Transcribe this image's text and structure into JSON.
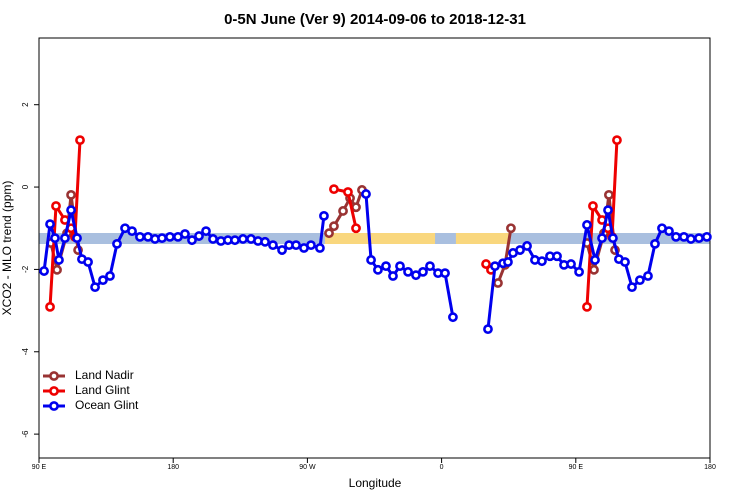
{
  "chart_data": {
    "type": "line",
    "title": "0-5N June (Ver 9)   2014-09-06 to 2018-12-31",
    "x_label": "Longitude",
    "y_label": "XCO2 - MLO trend (ppm)",
    "xlim": [
      90,
      540
    ],
    "ylim": [
      -6.58,
      3.62
    ],
    "xticks": [
      {
        "value": 90,
        "label": "90 E"
      },
      180,
      {
        "value": 270,
        "label": "90 W"
      },
      {
        "value": 360,
        "label": "0"
      },
      {
        "value": 450,
        "label": "90 E"
      },
      {
        "value": 540,
        "label": "180"
      }
    ],
    "yticks": [
      -6,
      -4,
      -2,
      0,
      2
    ],
    "legend": "lower left",
    "bands": [
      {
        "color": "#a9bfdf",
        "y": -1.25,
        "x": [
          90,
          540
        ]
      },
      {
        "color": "#f9d77e",
        "y": -1.25,
        "x": [
          281.8,
          355.6
        ]
      },
      {
        "color": "#f9d77e",
        "y": -1.25,
        "x": [
          369.6,
          405.8
        ]
      }
    ],
    "series": [
      {
        "name": "Land Nadir",
        "color": "#993333",
        "x": [
          98,
          102.1,
          108.8,
          111.5,
          116.2,
          null,
          284.5,
          287.8,
          293.9,
          298.6,
          302.6,
          306.6,
          null,
          397.8,
          402.5,
          406.5,
          null,
          457.5,
          462.2,
          468.9,
          472.2,
          476.3
        ],
        "values": [
          -1.36,
          -2.01,
          -1.12,
          -0.19,
          -1.53,
          null,
          -1.12,
          -0.95,
          -0.58,
          -0.27,
          -0.49,
          -0.07,
          null,
          -2.33,
          -1.89,
          -1.0,
          null,
          -1.36,
          -2.01,
          -1.12,
          -0.19,
          -1.53
        ]
      },
      {
        "name": "Land Glint",
        "color": "#ee0000",
        "x": [
          97.4,
          101.4,
          107.4,
          111.5,
          114.1,
          117.5,
          null,
          287.8,
          297.2,
          302.6,
          null,
          389.8,
          393.1,
          null,
          457.5,
          461.5,
          467.6,
          471.6,
          474.3,
          477.6
        ],
        "values": [
          -2.91,
          -0.46,
          -0.8,
          -1.0,
          -1.21,
          1.14,
          null,
          -0.05,
          -0.12,
          -1.0,
          null,
          -1.87,
          -2.01,
          null,
          -2.91,
          -0.46,
          -0.8,
          -1.0,
          -1.21,
          1.14
        ]
      },
      {
        "name": "Ocean Glint",
        "color": "#0000ee",
        "x": [
          93.4,
          97.4,
          100.7,
          103.4,
          107.4,
          111.5,
          115.5,
          118.8,
          122.9,
          127.6,
          132.9,
          137.6,
          142.3,
          147.7,
          152.4,
          157.7,
          163.1,
          167.8,
          172.5,
          177.8,
          183.2,
          187.9,
          192.6,
          197.3,
          202,
          206.7,
          212,
          216.7,
          221.4,
          226.8,
          232.2,
          236.9,
          241.6,
          246.9,
          253,
          257.7,
          262.4,
          267.7,
          272.4,
          278.4,
          281.1,
          null,
          309.3,
          312.7,
          317.3,
          322.7,
          327.4,
          332.1,
          337.5,
          342.8,
          347.5,
          352.2,
          357.6,
          362.3,
          367.6,
          null,
          391.1,
          395.8,
          401.2,
          404.5,
          407.9,
          412.6,
          417.3,
          422.6,
          427.3,
          432.7,
          437.4,
          442.1,
          446.8,
          452.2,
          457.5,
          462.9,
          467.6,
          471.6,
          474.9,
          478.9,
          483,
          487.7,
          493,
          498.4,
          503.1,
          507.8,
          512.5,
          517.2,
          522.5,
          527.2,
          532.6,
          537.9
        ],
        "values": [
          -2.04,
          -0.9,
          -1.24,
          -1.77,
          -1.24,
          -0.56,
          -1.24,
          -1.75,
          -1.82,
          -2.43,
          -2.26,
          -2.16,
          -1.38,
          -1.0,
          -1.07,
          -1.21,
          -1.21,
          -1.26,
          -1.24,
          -1.21,
          -1.21,
          -1.14,
          -1.29,
          -1.19,
          -1.07,
          -1.26,
          -1.31,
          -1.29,
          -1.29,
          -1.26,
          -1.26,
          -1.31,
          -1.33,
          -1.41,
          -1.53,
          -1.41,
          -1.41,
          -1.48,
          -1.41,
          -1.48,
          -0.7,
          null,
          -0.17,
          -1.77,
          -2.01,
          -1.92,
          -2.16,
          -1.92,
          -2.06,
          -2.14,
          -2.06,
          -1.92,
          -2.09,
          -2.09,
          -3.16,
          null,
          -3.45,
          -1.92,
          -1.85,
          -1.82,
          -1.6,
          -1.53,
          -1.43,
          -1.77,
          -1.8,
          -1.68,
          -1.68,
          -1.89,
          -1.87,
          -2.06,
          -0.92,
          -1.77,
          -1.24,
          -0.56,
          -1.24,
          -1.75,
          -1.82,
          -2.43,
          -2.26,
          -2.16,
          -1.38,
          -1.0,
          -1.07,
          -1.21,
          -1.21,
          -1.26,
          -1.24,
          -1.21
        ]
      }
    ]
  }
}
